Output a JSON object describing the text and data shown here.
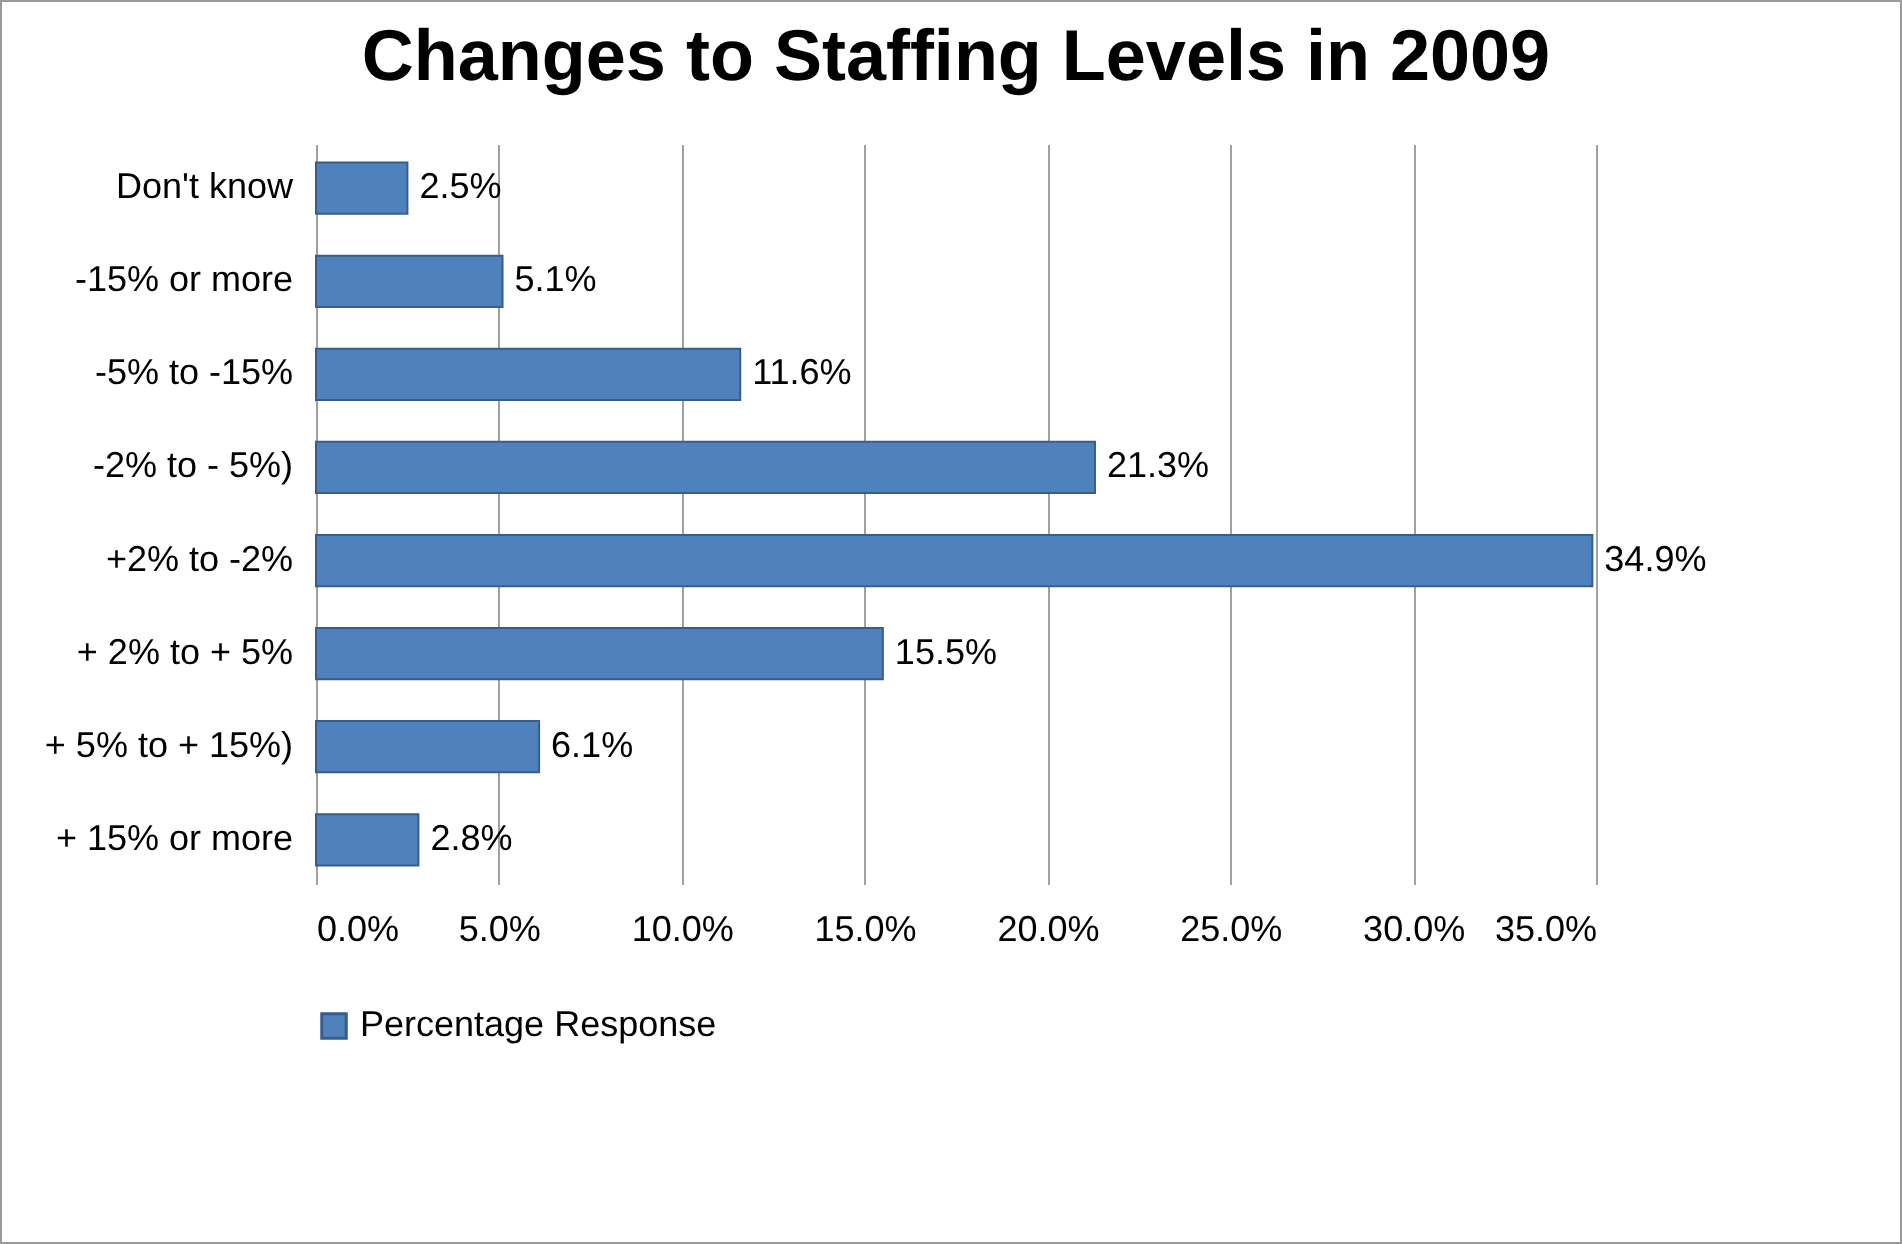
{
  "chart_data": {
    "type": "bar",
    "orientation": "horizontal",
    "title": "Changes to Staffing Levels in 2009",
    "categories": [
      "Don't know",
      "-15% or more",
      "-5% to -15%",
      "-2% to - 5%)",
      "+2% to -2%",
      "+ 2% to + 5%",
      "+ 5% to + 15%)",
      "+ 15% or more"
    ],
    "series": [
      {
        "name": "Percentage Response",
        "color": "#4f81bd",
        "values": [
          2.5,
          5.1,
          11.6,
          21.3,
          34.9,
          15.5,
          6.1,
          2.8
        ]
      }
    ],
    "value_labels": [
      "2.5%",
      "5.1%",
      "11.6%",
      "21.3%",
      "34.9%",
      "15.5%",
      "6.1%",
      "2.8%"
    ],
    "xlim": [
      0,
      35
    ],
    "xticks": [
      {
        "value": 0,
        "label": "0.0%"
      },
      {
        "value": 5,
        "label": "5.0%"
      },
      {
        "value": 10,
        "label": "10.0%"
      },
      {
        "value": 15,
        "label": "15.0%"
      },
      {
        "value": 20,
        "label": "20.0%"
      },
      {
        "value": 25,
        "label": "25.0%"
      },
      {
        "value": 30,
        "label": "30.0%"
      },
      {
        "value": 35,
        "label": "35.0%"
      }
    ],
    "grid": "x",
    "legend": "bottom"
  }
}
